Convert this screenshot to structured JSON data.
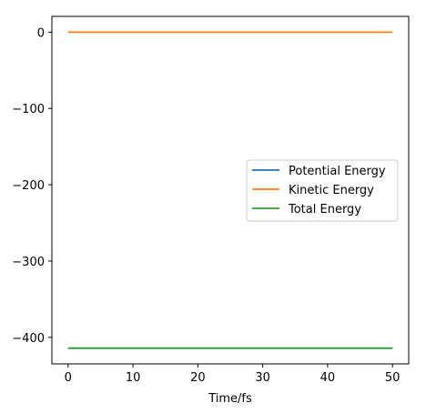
{
  "chart_data": {
    "type": "line",
    "title": "",
    "xlabel": "Time/fs",
    "ylabel": "",
    "xlim": [
      -2.5,
      52.5
    ],
    "ylim": [
      -434.8,
      20.7
    ],
    "xticks": [
      0,
      10,
      20,
      30,
      40,
      50
    ],
    "xtick_labels": [
      "0",
      "10",
      "20",
      "30",
      "40",
      "50"
    ],
    "yticks": [
      0,
      -100,
      -200,
      -300,
      -400
    ],
    "ytick_labels": [
      "0",
      "−100",
      "−200",
      "−300",
      "−400"
    ],
    "grid": false,
    "legend_position": "center-right",
    "series": [
      {
        "name": "Potential Energy",
        "color": "#1f77b4",
        "x": [
          0,
          50
        ],
        "y": [
          -414.2,
          -414.2
        ]
      },
      {
        "name": "Kinetic Energy",
        "color": "#ff7f0e",
        "x": [
          0,
          50
        ],
        "y": [
          0.0,
          0.0
        ]
      },
      {
        "name": "Total Energy",
        "color": "#2ca02c",
        "x": [
          0,
          50
        ],
        "y": [
          -414.2,
          -414.2
        ]
      }
    ]
  }
}
